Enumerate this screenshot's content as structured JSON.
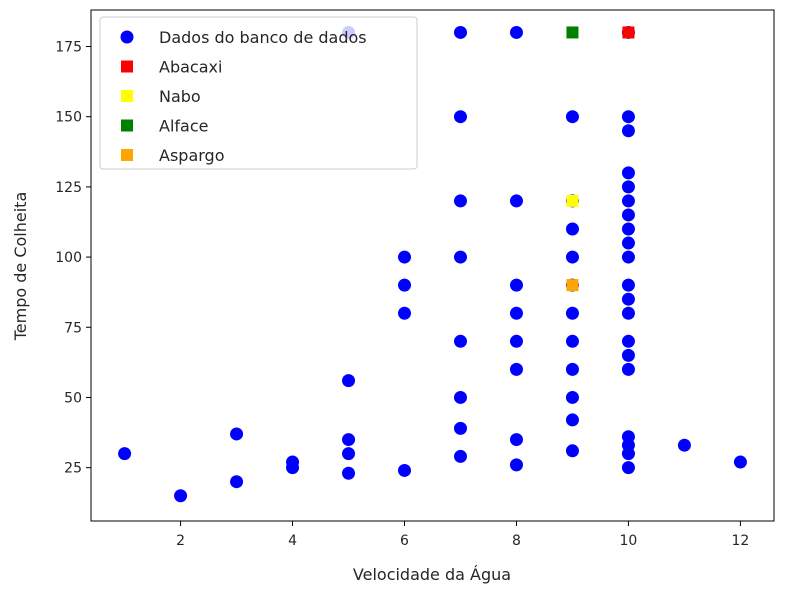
{
  "chart_data": {
    "type": "scatter",
    "xlabel": "Velocidade da Água",
    "ylabel": "Tempo de Colheita",
    "xlim": [
      0.4,
      12.6
    ],
    "ylim": [
      6,
      188
    ],
    "xticks": [
      2,
      4,
      6,
      8,
      10,
      12
    ],
    "yticks": [
      25,
      50,
      75,
      100,
      125,
      150,
      175
    ],
    "grid": false,
    "legend_position": "top-left",
    "series": [
      {
        "name": "Dados do banco de dados",
        "marker": "circle",
        "color": "#0000ff",
        "points": [
          [
            1,
            30
          ],
          [
            2,
            15
          ],
          [
            3,
            37
          ],
          [
            3,
            20
          ],
          [
            4,
            27
          ],
          [
            4,
            25
          ],
          [
            5,
            180
          ],
          [
            5,
            56
          ],
          [
            5,
            35
          ],
          [
            5,
            30
          ],
          [
            5,
            23
          ],
          [
            6,
            100
          ],
          [
            6,
            90
          ],
          [
            6,
            80
          ],
          [
            6,
            24
          ],
          [
            7,
            180
          ],
          [
            7,
            150
          ],
          [
            7,
            120
          ],
          [
            7,
            100
          ],
          [
            7,
            70
          ],
          [
            7,
            50
          ],
          [
            7,
            39
          ],
          [
            7,
            29
          ],
          [
            8,
            180
          ],
          [
            8,
            120
          ],
          [
            8,
            90
          ],
          [
            8,
            80
          ],
          [
            8,
            70
          ],
          [
            8,
            60
          ],
          [
            8,
            35
          ],
          [
            8,
            26
          ],
          [
            9,
            150
          ],
          [
            9,
            120
          ],
          [
            9,
            110
          ],
          [
            9,
            100
          ],
          [
            9,
            90
          ],
          [
            9,
            80
          ],
          [
            9,
            70
          ],
          [
            9,
            60
          ],
          [
            9,
            50
          ],
          [
            9,
            42
          ],
          [
            9,
            31
          ],
          [
            10,
            180
          ],
          [
            10,
            150
          ],
          [
            10,
            145
          ],
          [
            10,
            130
          ],
          [
            10,
            125
          ],
          [
            10,
            120
          ],
          [
            10,
            115
          ],
          [
            10,
            110
          ],
          [
            10,
            105
          ],
          [
            10,
            100
          ],
          [
            10,
            90
          ],
          [
            10,
            85
          ],
          [
            10,
            80
          ],
          [
            10,
            70
          ],
          [
            10,
            65
          ],
          [
            10,
            60
          ],
          [
            10,
            36
          ],
          [
            10,
            33
          ],
          [
            10,
            30
          ],
          [
            10,
            25
          ],
          [
            11,
            33
          ],
          [
            12,
            27
          ]
        ]
      },
      {
        "name": "Abacaxi",
        "marker": "square",
        "color": "#ff0000",
        "points": [
          [
            10,
            180
          ]
        ]
      },
      {
        "name": "Nabo",
        "marker": "square",
        "color": "#ffff00",
        "points": [
          [
            9,
            120
          ]
        ]
      },
      {
        "name": "Alface",
        "marker": "square",
        "color": "#008000",
        "points": [
          [
            9,
            180
          ]
        ]
      },
      {
        "name": "Aspargo",
        "marker": "square",
        "color": "#ffa500",
        "points": [
          [
            9,
            90
          ]
        ]
      }
    ]
  }
}
